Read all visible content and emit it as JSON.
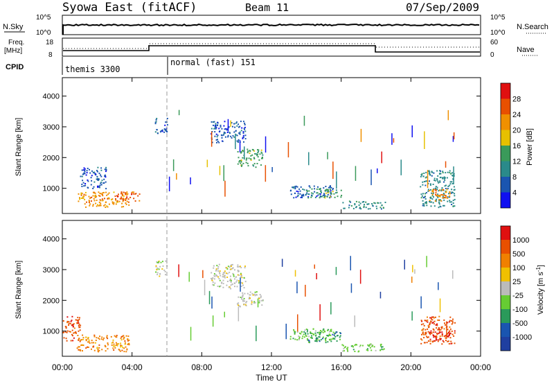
{
  "header": {
    "title": "Syowa East (fitACF)",
    "beam": "Beam 11",
    "date": "07/Sep/2009"
  },
  "top_panels": {
    "nsky_label": "N.Sky",
    "nsky_ticks": [
      "10^5",
      "10^0"
    ],
    "nsearch_label": "N.Search",
    "nsearch_ticks": [
      "10^5",
      "10^0"
    ],
    "freq_label_line1": "Freq.",
    "freq_label_line2": "[MHz]",
    "freq_ticks": [
      "18",
      "8"
    ],
    "nave_label": "Nave",
    "nave_ticks": [
      "60",
      "0"
    ],
    "cpid_label": "CPID",
    "cpid_segments": [
      {
        "label": "themis 3300",
        "start_hour": 0
      },
      {
        "label": "normal (fast) 151",
        "start_hour": 6
      }
    ]
  },
  "x_axis": {
    "title": "Time UT",
    "ticks": [
      "00:00",
      "04:00",
      "08:00",
      "12:00",
      "16:00",
      "20:00",
      "00:00"
    ],
    "tick_hours": [
      0,
      4,
      8,
      12,
      16,
      20,
      24
    ]
  },
  "chart_data": [
    {
      "type": "heatmap",
      "name": "power",
      "ylabel": "Slant Range [km]",
      "yticks": [
        "1000",
        "2000",
        "3000",
        "4000"
      ],
      "ytick_values": [
        1000,
        2000,
        3000,
        4000
      ],
      "ylim": [
        180,
        4600
      ],
      "xlim": [
        0,
        24
      ],
      "colorbar": {
        "label": "Power [dB]",
        "ticks": [
          "4",
          "8",
          "12",
          "16",
          "20",
          "24",
          "28"
        ],
        "colors": [
          "#1010f0",
          "#1a55b0",
          "#2a8a8a",
          "#3a9a5a",
          "#e6c000",
          "#f09000",
          "#e85000",
          "#e01010"
        ]
      },
      "regions": [
        {
          "h": [
            0.8,
            3.8
          ],
          "r": [
            400,
            900
          ],
          "c": 5
        },
        {
          "h": [
            3.0,
            4.5
          ],
          "r": [
            600,
            900
          ],
          "c": 6
        },
        {
          "h": [
            1.0,
            2.5
          ],
          "r": [
            1000,
            1700
          ],
          "c": 1
        },
        {
          "h": [
            5.3,
            6.0
          ],
          "r": [
            2800,
            3300
          ],
          "c": 1
        },
        {
          "h": [
            8.5,
            10.5
          ],
          "r": [
            2500,
            3200
          ],
          "c": 1
        },
        {
          "h": [
            10.0,
            11.5
          ],
          "r": [
            1700,
            2300
          ],
          "c": 3
        },
        {
          "h": [
            13.0,
            15.5
          ],
          "r": [
            700,
            1100
          ],
          "c": 1
        },
        {
          "h": [
            14.0,
            16.0
          ],
          "r": [
            700,
            1000
          ],
          "c": 3
        },
        {
          "h": [
            16.0,
            18.5
          ],
          "r": [
            350,
            600
          ],
          "c": 2
        },
        {
          "h": [
            20.5,
            22.5
          ],
          "r": [
            400,
            1600
          ],
          "c": 2
        },
        {
          "h": [
            21.0,
            22.3
          ],
          "r": [
            600,
            1000
          ],
          "c": 5
        }
      ]
    },
    {
      "type": "heatmap",
      "name": "velocity",
      "ylabel": "Slant Range [km]",
      "yticks": [
        "1000",
        "2000",
        "3000",
        "4000"
      ],
      "ytick_values": [
        1000,
        2000,
        3000,
        4000
      ],
      "ylim": [
        180,
        4600
      ],
      "xlim": [
        0,
        24
      ],
      "colorbar": {
        "label": "Velocity [m s^-1]",
        "ticks": [
          "1000",
          "500",
          "100",
          "25",
          "-25",
          "-100",
          "-500",
          "-1000"
        ],
        "colors": [
          "#1f3fa0",
          "#1a55b0",
          "#2a9a5a",
          "#66cc33",
          "#bbbbbb",
          "#f0c000",
          "#f08000",
          "#e85000",
          "#e01010"
        ]
      },
      "regions": [
        {
          "h": [
            0.8,
            3.8
          ],
          "r": [
            350,
            900
          ],
          "c": 6
        },
        {
          "h": [
            0.0,
            1.0
          ],
          "r": [
            700,
            1500
          ],
          "c": 7
        },
        {
          "h": [
            5.3,
            6.0
          ],
          "r": [
            2800,
            3300
          ],
          "c": 4
        },
        {
          "h": [
            8.5,
            10.5
          ],
          "r": [
            2400,
            3200
          ],
          "c": 4
        },
        {
          "h": [
            10.0,
            11.5
          ],
          "r": [
            1800,
            2300
          ],
          "c": 4
        },
        {
          "h": [
            13.0,
            15.5
          ],
          "r": [
            700,
            1100
          ],
          "c": 3
        },
        {
          "h": [
            14.0,
            16.0
          ],
          "r": [
            650,
            1000
          ],
          "c": 2
        },
        {
          "h": [
            16.0,
            18.5
          ],
          "r": [
            350,
            600
          ],
          "c": 3
        },
        {
          "h": [
            20.5,
            22.5
          ],
          "r": [
            600,
            1500
          ],
          "c": 7
        },
        {
          "h": [
            21.0,
            22.3
          ],
          "r": [
            700,
            1000
          ],
          "c": 8
        }
      ]
    }
  ]
}
